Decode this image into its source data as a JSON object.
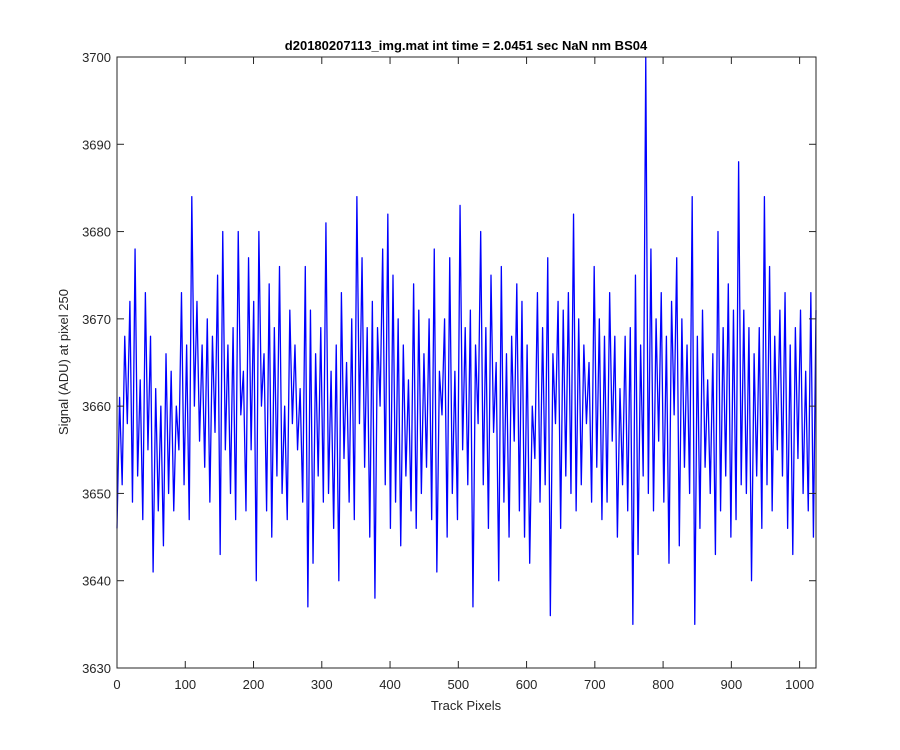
{
  "chart_data": {
    "type": "line",
    "title": "d20180207113_img.mat int time = 2.0451 sec  NaN nm BS04",
    "xlabel": "Track Pixels",
    "ylabel": "Signal (ADU) at pixel 250",
    "xlim": [
      0,
      1024
    ],
    "ylim": [
      3630,
      3700
    ],
    "xticks": [
      0,
      100,
      200,
      300,
      400,
      500,
      600,
      700,
      800,
      900,
      1000
    ],
    "yticks": [
      3630,
      3640,
      3650,
      3660,
      3670,
      3680,
      3690,
      3700
    ],
    "grid": false,
    "line_color": "#0000ff",
    "series": [
      {
        "values": [
          3646,
          3661,
          3651,
          3668,
          3658,
          3672,
          3649,
          3678,
          3652,
          3663,
          3647,
          3673,
          3655,
          3668,
          3641,
          3662,
          3648,
          3660,
          3644,
          3666,
          3650,
          3664,
          3648,
          3660,
          3655,
          3673,
          3651,
          3667,
          3647,
          3684,
          3660,
          3672,
          3656,
          3667,
          3653,
          3670,
          3649,
          3668,
          3657,
          3675,
          3643,
          3680,
          3655,
          3667,
          3650,
          3669,
          3647,
          3680,
          3659,
          3664,
          3648,
          3677,
          3655,
          3672,
          3640,
          3680,
          3660,
          3666,
          3648,
          3674,
          3645,
          3669,
          3652,
          3676,
          3650,
          3660,
          3647,
          3671,
          3658,
          3667,
          3655,
          3662,
          3649,
          3676,
          3637,
          3671,
          3642,
          3666,
          3652,
          3669,
          3649,
          3681,
          3650,
          3664,
          3646,
          3667,
          3640,
          3673,
          3654,
          3665,
          3649,
          3670,
          3647,
          3684,
          3658,
          3677,
          3653,
          3669,
          3645,
          3672,
          3638,
          3669,
          3660,
          3678,
          3651,
          3682,
          3646,
          3675,
          3649,
          3670,
          3644,
          3667,
          3652,
          3663,
          3648,
          3674,
          3646,
          3671,
          3650,
          3666,
          3653,
          3670,
          3647,
          3678,
          3641,
          3664,
          3659,
          3670,
          3645,
          3677,
          3650,
          3664,
          3647,
          3683,
          3655,
          3669,
          3651,
          3671,
          3637,
          3667,
          3658,
          3680,
          3651,
          3669,
          3646,
          3675,
          3657,
          3665,
          3640,
          3676,
          3649,
          3666,
          3645,
          3668,
          3656,
          3674,
          3648,
          3672,
          3645,
          3667,
          3642,
          3660,
          3654,
          3673,
          3649,
          3669,
          3651,
          3677,
          3636,
          3666,
          3658,
          3672,
          3646,
          3671,
          3652,
          3673,
          3650,
          3682,
          3648,
          3670,
          3651,
          3667,
          3658,
          3665,
          3649,
          3676,
          3653,
          3670,
          3647,
          3668,
          3649,
          3673,
          3656,
          3668,
          3645,
          3662,
          3651,
          3668,
          3648,
          3669,
          3635,
          3675,
          3643,
          3667,
          3652,
          3700,
          3650,
          3678,
          3648,
          3670,
          3656,
          3673,
          3649,
          3668,
          3642,
          3672,
          3659,
          3677,
          3644,
          3670,
          3653,
          3667,
          3650,
          3684,
          3635,
          3668,
          3646,
          3671,
          3653,
          3663,
          3650,
          3666,
          3643,
          3680,
          3648,
          3669,
          3652,
          3674,
          3645,
          3671,
          3647,
          3688,
          3651,
          3671,
          3650,
          3669,
          3640,
          3666,
          3652,
          3669,
          3646,
          3684,
          3651,
          3676,
          3648,
          3668,
          3655,
          3671,
          3652,
          3673,
          3646,
          3667,
          3643,
          3669,
          3654,
          3671,
          3650,
          3664,
          3648,
          3673,
          3645,
          3671
        ]
      }
    ]
  }
}
